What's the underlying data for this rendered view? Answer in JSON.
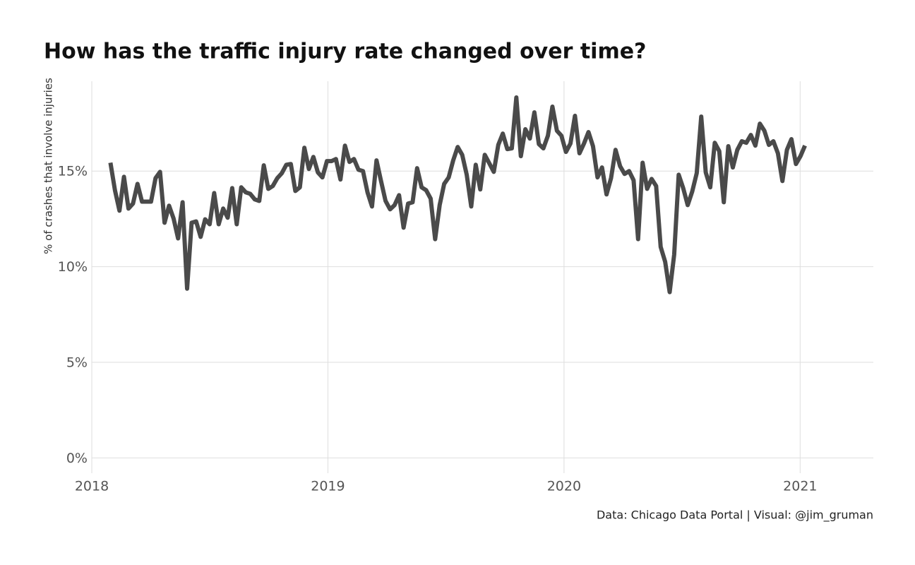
{
  "chart_data": {
    "type": "line",
    "title": "How has the traffic injury rate changed over time?",
    "y_label": "% of crashes that involve injuries",
    "caption": "Data: Chicago Data Portal | Visual: @jim_gruman",
    "color": "#4a4a4a",
    "grid": true,
    "xlim": [
      2018,
      2021.31
    ],
    "xticks": [
      2018,
      2019,
      2020,
      2021
    ],
    "ylim": [
      -0.8,
      19.7
    ],
    "yticks": [
      {
        "value": 0,
        "label": "0%"
      },
      {
        "value": 5,
        "label": "5%"
      },
      {
        "value": 10,
        "label": "10%"
      },
      {
        "value": 15,
        "label": "15%"
      }
    ],
    "x": [
      2018.079,
      2018.0981,
      2018.1172,
      2018.1363,
      2018.1554,
      2018.1745,
      2018.1936,
      2018.2127,
      2018.2318,
      2018.2509,
      2018.27,
      2018.2891,
      2018.3082,
      2018.3273,
      2018.3464,
      2018.3655,
      2018.3846,
      2018.4037,
      2018.4228,
      2018.4419,
      2018.461,
      2018.4801,
      2018.4992,
      2018.5183,
      2018.5374,
      2018.5565,
      2018.5756,
      2018.5947,
      2018.6138,
      2018.6329,
      2018.652,
      2018.6711,
      2018.6902,
      2018.7093,
      2018.7284,
      2018.7475,
      2018.7666,
      2018.7857,
      2018.8048,
      2018.8239,
      2018.843,
      2018.8621,
      2018.8812,
      2018.9003,
      2018.9194,
      2018.9385,
      2018.9576,
      2018.9767,
      2018.9958,
      2019.0149,
      2019.034,
      2019.0531,
      2019.0722,
      2019.0913,
      2019.1104,
      2019.1295,
      2019.1486,
      2019.1677,
      2019.1868,
      2019.2059,
      2019.225,
      2019.2441,
      2019.2632,
      2019.2823,
      2019.3014,
      2019.3205,
      2019.3396,
      2019.3587,
      2019.3778,
      2019.3969,
      2019.416,
      2019.4351,
      2019.4542,
      2019.4733,
      2019.4924,
      2019.5115,
      2019.5306,
      2019.5497,
      2019.5688,
      2019.5879,
      2019.607,
      2019.6261,
      2019.6452,
      2019.6643,
      2019.6834,
      2019.7025,
      2019.7216,
      2019.7407,
      2019.7598,
      2019.7789,
      2019.798,
      2019.8171,
      2019.8362,
      2019.8553,
      2019.8744,
      2019.8935,
      2019.9126,
      2019.9317,
      2019.9508,
      2019.9699,
      2019.989,
      2020.0081,
      2020.0272,
      2020.0463,
      2020.0654,
      2020.0845,
      2020.1036,
      2020.1227,
      2020.1418,
      2020.1609,
      2020.18,
      2020.1991,
      2020.2182,
      2020.2373,
      2020.2564,
      2020.2755,
      2020.2946,
      2020.3137,
      2020.3328,
      2020.3519,
      2020.371,
      2020.3901,
      2020.4092,
      2020.4283,
      2020.4474,
      2020.4665,
      2020.4856,
      2020.5047,
      2020.5238,
      2020.5429,
      2020.562,
      2020.5811,
      2020.6002,
      2020.6193,
      2020.6384,
      2020.6575,
      2020.6766,
      2020.6957,
      2020.7148,
      2020.7339,
      2020.753,
      2020.7721,
      2020.7912,
      2020.8103,
      2020.8294,
      2020.8485,
      2020.8676,
      2020.8867,
      2020.9058,
      2020.9249,
      2020.944,
      2020.9631,
      2020.9822,
      2021.0013,
      2021.0204
    ],
    "values": [
      15.44,
      14.0,
      12.93,
      14.7,
      13.04,
      13.3,
      14.33,
      13.4,
      13.4,
      13.4,
      14.63,
      14.96,
      12.3,
      13.19,
      12.52,
      11.48,
      13.37,
      8.85,
      12.3,
      12.37,
      11.56,
      12.48,
      12.22,
      13.85,
      12.22,
      13.04,
      12.56,
      14.11,
      12.22,
      14.15,
      13.89,
      13.81,
      13.52,
      13.44,
      15.3,
      14.07,
      14.22,
      14.63,
      14.89,
      15.33,
      15.37,
      13.96,
      14.15,
      16.22,
      15.11,
      15.74,
      14.93,
      14.67,
      15.52,
      15.52,
      15.63,
      14.56,
      16.33,
      15.48,
      15.63,
      15.07,
      15.0,
      13.89,
      13.15,
      15.56,
      14.48,
      13.44,
      13.0,
      13.22,
      13.74,
      12.04,
      13.3,
      13.37,
      15.15,
      14.15,
      14.0,
      13.56,
      11.44,
      13.22,
      14.33,
      14.67,
      15.56,
      16.26,
      15.85,
      14.81,
      13.15,
      15.33,
      14.04,
      15.85,
      15.41,
      14.96,
      16.37,
      16.96,
      16.15,
      16.19,
      18.85,
      15.78,
      17.19,
      16.7,
      18.07,
      16.41,
      16.19,
      16.85,
      18.37,
      17.11,
      16.85,
      16.0,
      16.44,
      17.89,
      15.93,
      16.44,
      17.04,
      16.3,
      14.67,
      15.19,
      13.78,
      14.63,
      16.11,
      15.26,
      14.85,
      15.0,
      14.52,
      11.44,
      15.44,
      14.07,
      14.59,
      14.22,
      11.04,
      10.26,
      8.67,
      10.63,
      14.81,
      14.11,
      13.22,
      13.93,
      14.89,
      17.85,
      14.93,
      14.15,
      16.48,
      16.04,
      13.37,
      16.3,
      15.19,
      16.11,
      16.56,
      16.48,
      16.89,
      16.33,
      17.48,
      17.11,
      16.37,
      16.56,
      15.93,
      14.48,
      16.11,
      16.67,
      15.37,
      15.78,
      16.33
    ]
  }
}
